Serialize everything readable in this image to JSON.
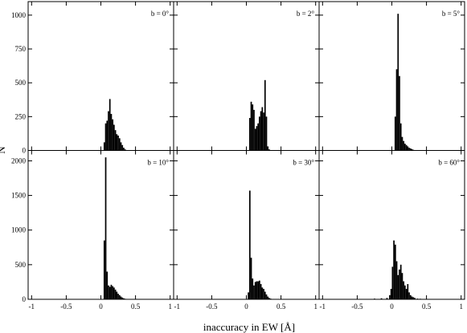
{
  "chart_data": {
    "type": "bar",
    "xlabel": "inaccuracy in EW [Å]",
    "ylabel": "N",
    "x_ticks": [
      "-1",
      "-0.5",
      "0",
      "0.5",
      "1"
    ],
    "xlim": [
      -1.05,
      1.05
    ],
    "layout": "2x3 grid",
    "rows": [
      {
        "ylim": [
          0,
          1100
        ],
        "y_ticks": [
          "0",
          "250",
          "500",
          "750",
          "1000"
        ],
        "panels": [
          {
            "label": "b = 0°",
            "bins": [
              [
                0.05,
                60
              ],
              [
                0.07,
                200
              ],
              [
                0.09,
                220
              ],
              [
                0.11,
                290
              ],
              [
                0.13,
                380
              ],
              [
                0.15,
                270
              ],
              [
                0.17,
                230
              ],
              [
                0.19,
                190
              ],
              [
                0.21,
                150
              ],
              [
                0.23,
                120
              ],
              [
                0.25,
                110
              ],
              [
                0.27,
                90
              ],
              [
                0.29,
                60
              ],
              [
                0.31,
                40
              ],
              [
                0.33,
                20
              ],
              [
                0.35,
                8
              ]
            ]
          },
          {
            "label": "b = 2°",
            "bins": [
              [
                0.05,
                240
              ],
              [
                0.07,
                360
              ],
              [
                0.09,
                340
              ],
              [
                0.11,
                300
              ],
              [
                0.13,
                160
              ],
              [
                0.15,
                180
              ],
              [
                0.17,
                200
              ],
              [
                0.19,
                250
              ],
              [
                0.21,
                290
              ],
              [
                0.23,
                320
              ],
              [
                0.25,
                280
              ],
              [
                0.27,
                520
              ],
              [
                0.29,
                250
              ],
              [
                0.31,
                30
              ],
              [
                0.33,
                8
              ]
            ]
          },
          {
            "label": "b = 5°",
            "bins": [
              [
                0.05,
                250
              ],
              [
                0.07,
                600
              ],
              [
                0.09,
                1010
              ],
              [
                0.11,
                550
              ],
              [
                0.13,
                200
              ],
              [
                0.15,
                100
              ],
              [
                0.17,
                70
              ],
              [
                0.19,
                50
              ],
              [
                0.21,
                40
              ],
              [
                0.23,
                30
              ],
              [
                0.25,
                20
              ],
              [
                0.27,
                15
              ],
              [
                0.29,
                10
              ],
              [
                0.31,
                5
              ]
            ]
          }
        ]
      },
      {
        "ylim": [
          0,
          2150
        ],
        "y_ticks": [
          "0",
          "500",
          "1000",
          "1500",
          "2000"
        ],
        "panels": [
          {
            "label": "b = 10°",
            "bins": [
              [
                0.05,
                850
              ],
              [
                0.07,
                2050
              ],
              [
                0.09,
                400
              ],
              [
                0.11,
                200
              ],
              [
                0.13,
                180
              ],
              [
                0.15,
                210
              ],
              [
                0.17,
                190
              ],
              [
                0.19,
                170
              ],
              [
                0.21,
                140
              ],
              [
                0.23,
                110
              ],
              [
                0.25,
                80
              ],
              [
                0.27,
                60
              ],
              [
                0.29,
                40
              ],
              [
                0.31,
                25
              ],
              [
                0.33,
                15
              ],
              [
                0.35,
                8
              ]
            ]
          },
          {
            "label": "b = 30°",
            "bins": [
              [
                0.03,
                100
              ],
              [
                0.05,
                1570
              ],
              [
                0.07,
                600
              ],
              [
                0.09,
                300
              ],
              [
                0.11,
                200
              ],
              [
                0.13,
                250
              ],
              [
                0.15,
                260
              ],
              [
                0.17,
                260
              ],
              [
                0.19,
                270
              ],
              [
                0.21,
                220
              ],
              [
                0.23,
                170
              ],
              [
                0.25,
                150
              ],
              [
                0.27,
                110
              ],
              [
                0.29,
                70
              ],
              [
                0.31,
                40
              ],
              [
                0.33,
                20
              ],
              [
                0.35,
                10
              ]
            ]
          },
          {
            "label": "b = 60°",
            "bins": [
              [
                -0.25,
                10
              ],
              [
                -0.15,
                15
              ],
              [
                -0.07,
                20
              ],
              [
                -0.03,
                60
              ],
              [
                -0.01,
                150
              ],
              [
                0.01,
                470
              ],
              [
                0.03,
                850
              ],
              [
                0.05,
                790
              ],
              [
                0.07,
                550
              ],
              [
                0.09,
                350
              ],
              [
                0.11,
                430
              ],
              [
                0.13,
                500
              ],
              [
                0.15,
                380
              ],
              [
                0.17,
                260
              ],
              [
                0.19,
                200
              ],
              [
                0.21,
                150
              ],
              [
                0.23,
                220
              ],
              [
                0.25,
                100
              ],
              [
                0.27,
                60
              ],
              [
                0.29,
                40
              ],
              [
                0.31,
                30
              ],
              [
                0.33,
                20
              ],
              [
                0.37,
                10
              ],
              [
                0.41,
                8
              ],
              [
                0.47,
                5
              ]
            ]
          }
        ]
      }
    ]
  }
}
